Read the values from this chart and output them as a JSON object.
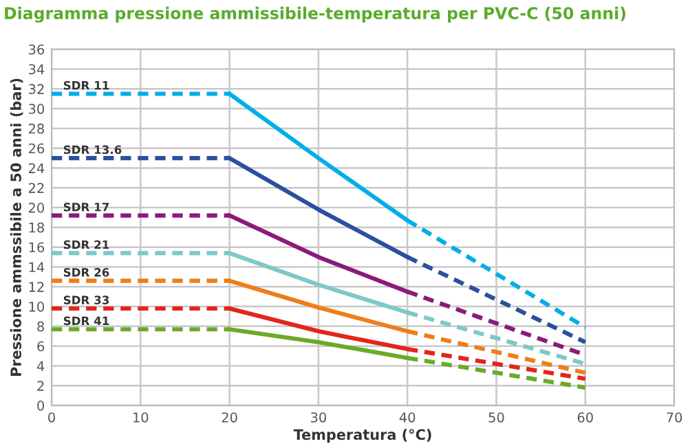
{
  "chart_data": {
    "type": "line",
    "title": "Diagramma pressione ammissibile-temperatura per PVC-C (50 anni)",
    "xlabel": "Temperatura (°C)",
    "ylabel": "Pressione ammssibile a 50 anni (bar)",
    "xlim": [
      0,
      70
    ],
    "xticks": [
      0,
      10,
      20,
      30,
      40,
      50,
      60,
      70
    ],
    "ylim": [
      0,
      36
    ],
    "yticks": [
      0,
      2,
      4,
      6,
      8,
      10,
      12,
      14,
      16,
      18,
      20,
      22,
      24,
      26,
      28,
      30,
      32,
      34,
      36
    ],
    "grid": true,
    "legend": false,
    "series": [
      {
        "name": "SDR 11",
        "color": "#00aee8",
        "x": [
          0,
          20
        ],
        "values": [
          31.5,
          31.5
        ],
        "line_style": "dashed"
      },
      {
        "color": "#00aee8",
        "x": [
          20,
          30,
          40
        ],
        "values": [
          31.5,
          25.0,
          18.7
        ],
        "line_style": "solid"
      },
      {
        "color": "#00aee8",
        "x": [
          40,
          60
        ],
        "values": [
          18.7,
          7.9
        ],
        "line_style": "dashed"
      },
      {
        "name": "SDR 13.6",
        "color": "#2c4f9e",
        "x": [
          0,
          20
        ],
        "values": [
          25.0,
          25.0
        ],
        "line_style": "dashed"
      },
      {
        "color": "#2c4f9e",
        "x": [
          20,
          30,
          40
        ],
        "values": [
          25.0,
          19.8,
          15.0
        ],
        "line_style": "solid"
      },
      {
        "color": "#2c4f9e",
        "x": [
          40,
          60
        ],
        "values": [
          15.0,
          6.4
        ],
        "line_style": "dashed"
      },
      {
        "name": "SDR 17",
        "color": "#8b1a7c",
        "x": [
          0,
          20
        ],
        "values": [
          19.2,
          19.2
        ],
        "line_style": "dashed"
      },
      {
        "color": "#8b1a7c",
        "x": [
          20,
          30,
          40
        ],
        "values": [
          19.2,
          15.0,
          11.5
        ],
        "line_style": "solid"
      },
      {
        "color": "#8b1a7c",
        "x": [
          40,
          60
        ],
        "values": [
          11.5,
          5.1
        ],
        "line_style": "dashed"
      },
      {
        "name": "SDR 21",
        "color": "#7fc8c8",
        "x": [
          0,
          20
        ],
        "values": [
          15.4,
          15.4
        ],
        "line_style": "dashed"
      },
      {
        "color": "#7fc8c8",
        "x": [
          20,
          30,
          40
        ],
        "values": [
          15.4,
          12.2,
          9.4
        ],
        "line_style": "solid"
      },
      {
        "color": "#7fc8c8",
        "x": [
          40,
          60
        ],
        "values": [
          9.4,
          4.2
        ],
        "line_style": "dashed"
      },
      {
        "name": "SDR 26",
        "color": "#f07d1a",
        "x": [
          0,
          20
        ],
        "values": [
          12.6,
          12.6
        ],
        "line_style": "dashed"
      },
      {
        "color": "#f07d1a",
        "x": [
          20,
          30,
          40
        ],
        "values": [
          12.6,
          9.9,
          7.5
        ],
        "line_style": "solid"
      },
      {
        "color": "#f07d1a",
        "x": [
          40,
          60
        ],
        "values": [
          7.5,
          3.3
        ],
        "line_style": "dashed"
      },
      {
        "name": "SDR 33",
        "color": "#e3251b",
        "x": [
          0,
          20
        ],
        "values": [
          9.8,
          9.8
        ],
        "line_style": "dashed"
      },
      {
        "color": "#e3251b",
        "x": [
          20,
          30,
          40
        ],
        "values": [
          9.8,
          7.5,
          5.7
        ],
        "line_style": "solid"
      },
      {
        "color": "#e3251b",
        "x": [
          40,
          60
        ],
        "values": [
          5.7,
          2.7
        ],
        "line_style": "dashed"
      },
      {
        "name": "SDR 41",
        "color": "#6aaa2a",
        "x": [
          0,
          20
        ],
        "values": [
          7.7,
          7.7
        ],
        "line_style": "dashed"
      },
      {
        "color": "#6aaa2a",
        "x": [
          20,
          30,
          40
        ],
        "values": [
          7.7,
          6.4,
          4.8
        ],
        "line_style": "solid"
      },
      {
        "color": "#6aaa2a",
        "x": [
          40,
          60
        ],
        "values": [
          4.8,
          1.8
        ],
        "line_style": "dashed"
      }
    ]
  }
}
